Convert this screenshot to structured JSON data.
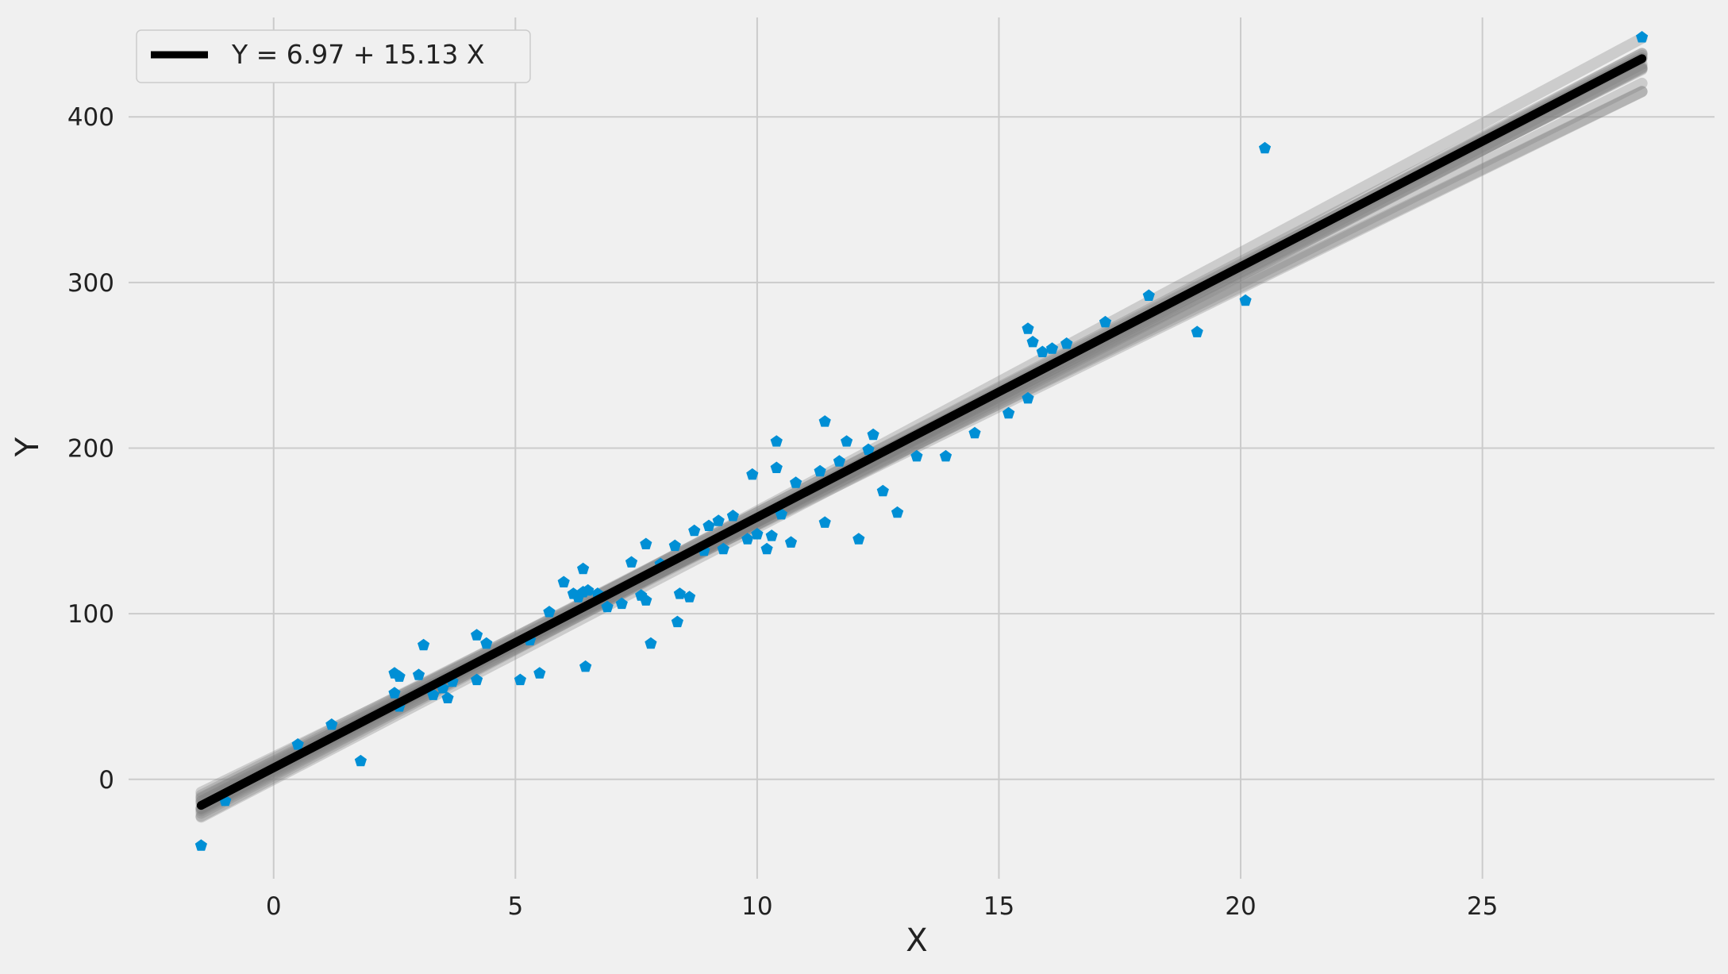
{
  "chart_data": {
    "type": "scatter",
    "xlabel": "X",
    "ylabel": "Y",
    "xlim": [
      -3.0,
      29.8
    ],
    "ylim": [
      -60,
      460
    ],
    "x_ticks": [
      0,
      5,
      10,
      15,
      20,
      25
    ],
    "y_ticks": [
      0,
      100,
      200,
      300,
      400
    ],
    "grid": true,
    "background": "#f0f0f0",
    "grid_color": "#cbcbcb",
    "point_color": "#008fd5",
    "legend": {
      "position": "top-left",
      "entries": [
        "Y = 6.97 + 15.13 X"
      ]
    },
    "series": [
      {
        "type": "line",
        "name": "Y = 6.97 + 15.13 X",
        "color": "#000000",
        "intercept": 6.97,
        "slope": 15.13,
        "x_range": [
          -1.5,
          28.3
        ]
      },
      {
        "type": "band",
        "color": "#808080",
        "lines": [
          {
            "intercept": 9.5,
            "slope": 15.15
          },
          {
            "intercept": 4.5,
            "slope": 15.1
          },
          {
            "intercept": 11.0,
            "slope": 15.0
          },
          {
            "intercept": 2.5,
            "slope": 15.3
          },
          {
            "intercept": 7.5,
            "slope": 14.9
          },
          {
            "intercept": 5.5,
            "slope": 15.25
          },
          {
            "intercept": 12.5,
            "slope": 14.7
          },
          {
            "intercept": 1.0,
            "slope": 15.45
          },
          {
            "intercept": 8.5,
            "slope": 14.55
          },
          {
            "intercept": 3.5,
            "slope": 15.05
          },
          {
            "intercept": 10.5,
            "slope": 14.3
          },
          {
            "intercept": 6.0,
            "slope": 15.6
          },
          {
            "intercept": 13.5,
            "slope": 14.2
          },
          {
            "intercept": 0.0,
            "slope": 15.2
          }
        ]
      },
      {
        "type": "scatter",
        "points": [
          [
            -1.5,
            -40
          ],
          [
            -1.0,
            -13
          ],
          [
            0.5,
            21
          ],
          [
            1.2,
            33
          ],
          [
            1.8,
            11
          ],
          [
            2.5,
            52
          ],
          [
            2.5,
            64
          ],
          [
            2.6,
            62
          ],
          [
            2.6,
            44
          ],
          [
            3.0,
            63
          ],
          [
            3.1,
            81
          ],
          [
            3.3,
            51
          ],
          [
            3.5,
            55
          ],
          [
            3.6,
            49
          ],
          [
            3.7,
            59
          ],
          [
            4.2,
            87
          ],
          [
            4.2,
            60
          ],
          [
            4.4,
            82
          ],
          [
            5.1,
            60
          ],
          [
            5.3,
            84
          ],
          [
            5.5,
            64
          ],
          [
            5.7,
            101
          ],
          [
            6.0,
            119
          ],
          [
            6.2,
            112
          ],
          [
            6.3,
            110
          ],
          [
            6.4,
            113
          ],
          [
            6.4,
            127
          ],
          [
            6.45,
            68
          ],
          [
            6.5,
            114
          ],
          [
            6.7,
            112
          ],
          [
            6.9,
            104
          ],
          [
            7.2,
            106
          ],
          [
            7.4,
            131
          ],
          [
            7.6,
            111
          ],
          [
            7.7,
            108
          ],
          [
            7.7,
            142
          ],
          [
            7.8,
            82
          ],
          [
            8.0,
            130
          ],
          [
            8.3,
            141
          ],
          [
            8.35,
            95
          ],
          [
            8.4,
            112
          ],
          [
            8.6,
            110
          ],
          [
            8.7,
            150
          ],
          [
            8.9,
            138
          ],
          [
            9.0,
            153
          ],
          [
            9.2,
            156
          ],
          [
            9.3,
            139
          ],
          [
            9.5,
            159
          ],
          [
            9.8,
            145
          ],
          [
            9.9,
            184
          ],
          [
            10.0,
            148
          ],
          [
            10.2,
            139
          ],
          [
            10.3,
            147
          ],
          [
            10.4,
            204
          ],
          [
            10.4,
            188
          ],
          [
            10.5,
            160
          ],
          [
            10.7,
            143
          ],
          [
            10.8,
            179
          ],
          [
            11.4,
            216
          ],
          [
            11.4,
            155
          ],
          [
            11.3,
            186
          ],
          [
            11.7,
            192
          ],
          [
            11.85,
            204
          ],
          [
            12.1,
            145
          ],
          [
            12.3,
            199
          ],
          [
            12.4,
            208
          ],
          [
            12.6,
            174
          ],
          [
            12.9,
            161
          ],
          [
            13.3,
            195
          ],
          [
            13.9,
            195
          ],
          [
            14.5,
            209
          ],
          [
            15.2,
            221
          ],
          [
            15.6,
            272
          ],
          [
            15.6,
            230
          ],
          [
            15.7,
            264
          ],
          [
            15.9,
            258
          ],
          [
            16.1,
            260
          ],
          [
            16.4,
            263
          ],
          [
            17.2,
            276
          ],
          [
            18.1,
            292
          ],
          [
            19.1,
            270
          ],
          [
            20.1,
            289
          ],
          [
            20.5,
            381
          ],
          [
            28.3,
            448
          ]
        ]
      }
    ]
  }
}
